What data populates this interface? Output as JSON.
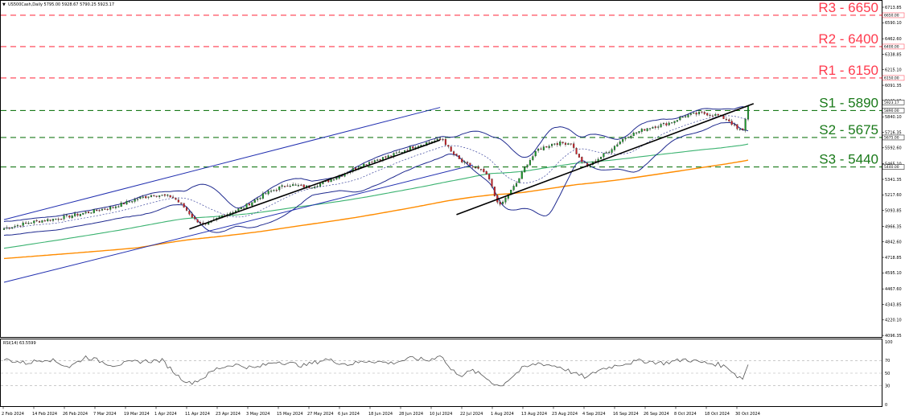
{
  "header": {
    "symbol_text": "US500Cash,Daily  5795.00 5928.67 5790.25 5923.17",
    "rsi_label": "RSI(14) 63.5599"
  },
  "colors": {
    "resistance": "#ff3b4e",
    "support": "#1a7a1a",
    "candle_up": "#1a9e2a",
    "candle_down": "#d42027",
    "bollinger": "#1f2a8f",
    "channel": "#2230b0",
    "ma_mid": "#3cb371",
    "ma_long": "#ff8c00",
    "trendline": "#000000",
    "rsi_line": "#555555"
  },
  "chart_data": [
    {
      "type": "line",
      "title": "",
      "xlabel": "",
      "ylabel": "",
      "ylim": [
        4096.95,
        6713.85
      ],
      "x_ticks": [
        "2 Feb 2024",
        "14 Feb 2024",
        "26 Feb 2024",
        "7 Mar 2024",
        "19 Mar 2024",
        "1 Apr 2024",
        "11 Apr 2024",
        "23 Apr 2024",
        "3 May 2024",
        "15 May 2024",
        "27 May 2024",
        "6 Jun 2024",
        "18 Jun 2024",
        "28 Jun 2024",
        "10 Jul 2024",
        "22 Jul 2024",
        "1 Aug 2024",
        "13 Aug 2024",
        "23 Aug 2024",
        "4 Sep 2024",
        "16 Sep 2024",
        "26 Sep 2024",
        "8 Oct 2024",
        "18 Oct 2024",
        "30 Oct 2024"
      ],
      "y_ticks": [
        "6713.85",
        "6590.10",
        "6462.60",
        "6338.85",
        "6215.10",
        "6091.35",
        "5963.85",
        "5840.10",
        "5716.35",
        "5592.60",
        "5465.10",
        "5341.35",
        "5217.60",
        "5093.85",
        "4966.35",
        "4842.60",
        "4718.85",
        "4595.10",
        "4467.60",
        "4343.85",
        "4220.10",
        "4096.35"
      ],
      "levels": [
        {
          "label": "R3 - 6650",
          "value": 6650,
          "tag": "6650.00",
          "kind": "resistance"
        },
        {
          "label": "R2 - 6400",
          "value": 6400,
          "tag": "6400.00",
          "kind": "resistance"
        },
        {
          "label": "R1 - 6150",
          "value": 6150,
          "tag": "6150.00",
          "kind": "resistance"
        },
        {
          "label": "S1 - 5890",
          "value": 5890,
          "tag": "5890.00",
          "kind": "support"
        },
        {
          "label": "S2 - 5675",
          "value": 5675,
          "tag": "5675.00",
          "kind": "support"
        },
        {
          "label": "S3 - 5440",
          "value": 5440,
          "tag": "5440.00",
          "kind": "support"
        }
      ],
      "current_price": {
        "value": 5923.17,
        "tag": "5923.17"
      },
      "close_series_waypoints": [
        [
          0,
          4950
        ],
        [
          10,
          5000
        ],
        [
          20,
          5030
        ],
        [
          30,
          5075
        ],
        [
          40,
          5120
        ],
        [
          48,
          5180
        ],
        [
          55,
          5220
        ],
        [
          62,
          5200
        ],
        [
          66,
          5120
        ],
        [
          70,
          5020
        ],
        [
          74,
          4975
        ],
        [
          80,
          5050
        ],
        [
          88,
          5120
        ],
        [
          96,
          5230
        ],
        [
          104,
          5300
        ],
        [
          112,
          5280
        ],
        [
          118,
          5320
        ],
        [
          126,
          5400
        ],
        [
          134,
          5480
        ],
        [
          142,
          5530
        ],
        [
          150,
          5600
        ],
        [
          156,
          5640
        ],
        [
          161,
          5660
        ],
        [
          164,
          5560
        ],
        [
          168,
          5480
        ],
        [
          172,
          5440
        ],
        [
          176,
          5400
        ],
        [
          178,
          5340
        ],
        [
          180,
          5210
        ],
        [
          182,
          5130
        ],
        [
          184,
          5190
        ],
        [
          188,
          5310
        ],
        [
          192,
          5470
        ],
        [
          196,
          5580
        ],
        [
          202,
          5630
        ],
        [
          208,
          5630
        ],
        [
          211,
          5510
        ],
        [
          214,
          5440
        ],
        [
          217,
          5490
        ],
        [
          222,
          5570
        ],
        [
          228,
          5680
        ],
        [
          236,
          5750
        ],
        [
          244,
          5790
        ],
        [
          250,
          5850
        ],
        [
          256,
          5870
        ],
        [
          262,
          5850
        ],
        [
          266,
          5810
        ],
        [
          269,
          5740
        ],
        [
          271,
          5730
        ],
        [
          273,
          5923
        ]
      ],
      "rsi": {
        "ylim": [
          0,
          100
        ],
        "y_ticks": [
          "100",
          "70",
          "50",
          "30",
          "0"
        ],
        "waypoints": [
          [
            0,
            72
          ],
          [
            8,
            66
          ],
          [
            16,
            73
          ],
          [
            24,
            60
          ],
          [
            30,
            76
          ],
          [
            40,
            63
          ],
          [
            50,
            69
          ],
          [
            58,
            70
          ],
          [
            64,
            45
          ],
          [
            68,
            34
          ],
          [
            72,
            40
          ],
          [
            78,
            57
          ],
          [
            84,
            64
          ],
          [
            92,
            58
          ],
          [
            100,
            69
          ],
          [
            110,
            62
          ],
          [
            118,
            72
          ],
          [
            126,
            64
          ],
          [
            134,
            70
          ],
          [
            142,
            66
          ],
          [
            150,
            74
          ],
          [
            156,
            70
          ],
          [
            160,
            80
          ],
          [
            164,
            55
          ],
          [
            168,
            47
          ],
          [
            172,
            54
          ],
          [
            176,
            45
          ],
          [
            180,
            33
          ],
          [
            182,
            29
          ],
          [
            186,
            43
          ],
          [
            190,
            57
          ],
          [
            196,
            66
          ],
          [
            204,
            60
          ],
          [
            210,
            48
          ],
          [
            214,
            43
          ],
          [
            218,
            55
          ],
          [
            226,
            64
          ],
          [
            234,
            70
          ],
          [
            242,
            66
          ],
          [
            250,
            72
          ],
          [
            256,
            67
          ],
          [
            262,
            64
          ],
          [
            266,
            58
          ],
          [
            269,
            45
          ],
          [
            271,
            42
          ],
          [
            273,
            63.56
          ]
        ]
      }
    }
  ]
}
